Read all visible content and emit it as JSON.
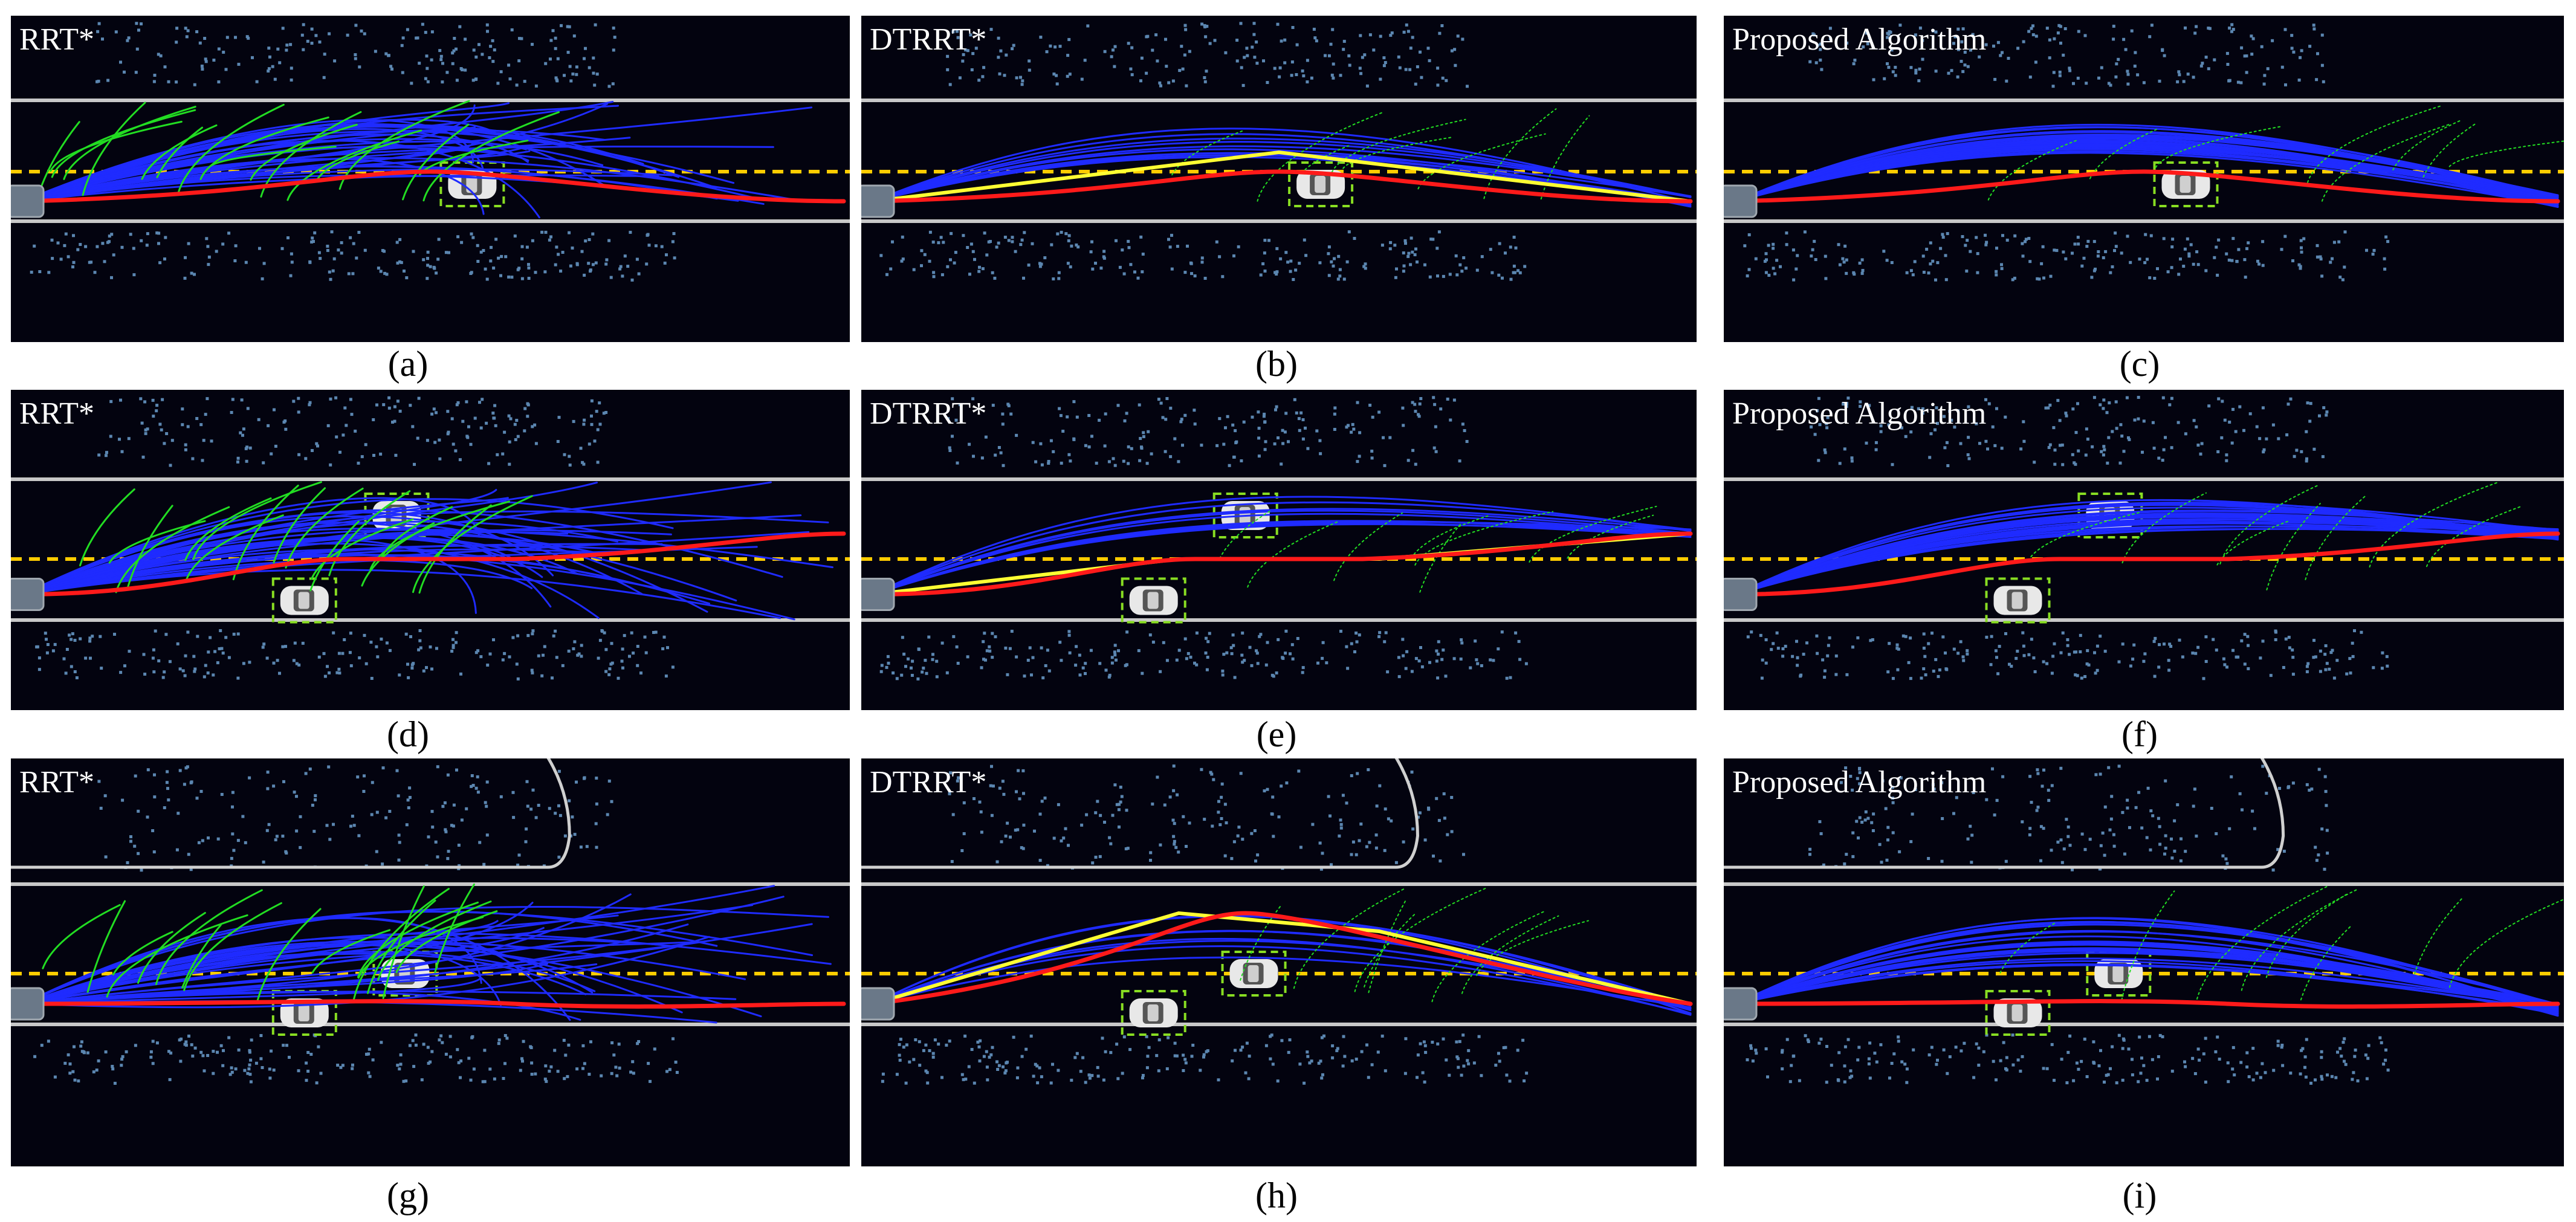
{
  "panels": [
    {
      "id": "a",
      "title": "RRT*",
      "caption": "(a)",
      "scenario": 1,
      "method": "rrt"
    },
    {
      "id": "b",
      "title": "DTRRT*",
      "caption": "(b)",
      "scenario": 1,
      "method": "dtrrt"
    },
    {
      "id": "c",
      "title": "Proposed Algorithm",
      "caption": "(c)",
      "scenario": 1,
      "method": "proposed"
    },
    {
      "id": "d",
      "title": "RRT*",
      "caption": "(d)",
      "scenario": 2,
      "method": "rrt"
    },
    {
      "id": "e",
      "title": "DTRRT*",
      "caption": "(e)",
      "scenario": 2,
      "method": "dtrrt"
    },
    {
      "id": "f",
      "title": "Proposed Algorithm",
      "caption": "(f)",
      "scenario": 2,
      "method": "proposed"
    },
    {
      "id": "g",
      "title": "RRT*",
      "caption": "(g)",
      "scenario": 3,
      "method": "rrt"
    },
    {
      "id": "h",
      "title": "DTRRT*",
      "caption": "(h)",
      "scenario": 3,
      "method": "dtrrt"
    },
    {
      "id": "i",
      "title": "Proposed Algorithm",
      "caption": "(i)",
      "scenario": 3,
      "method": "proposed"
    }
  ],
  "colors": {
    "background": "#03030f",
    "lane_boundary": "#c8c8c8",
    "center_line": "#ffcc00",
    "final_path": "#ff1a1a",
    "tree_explored": "#1f2bff",
    "tree_pruned": "#22dd22",
    "reference_path": "#ffff33",
    "point_cloud": "#5b86b0",
    "vehicle_box": "#88dd22"
  }
}
